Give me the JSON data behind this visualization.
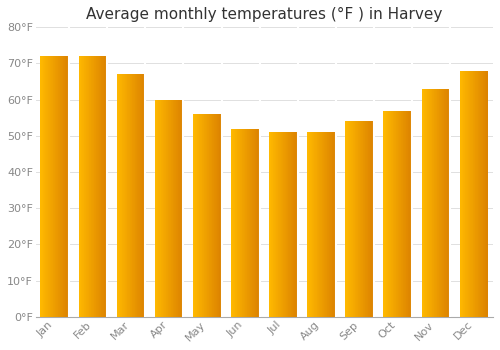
{
  "title": "Average monthly temperatures (°F ) in Harvey",
  "months": [
    "Jan",
    "Feb",
    "Mar",
    "Apr",
    "May",
    "Jun",
    "Jul",
    "Aug",
    "Sep",
    "Oct",
    "Nov",
    "Dec"
  ],
  "values": [
    72,
    72,
    67,
    60,
    56,
    52,
    51,
    51,
    54,
    57,
    63,
    68
  ],
  "bar_color_left": "#FFB800",
  "bar_color_right": "#F08000",
  "bar_color_top": "#F5A623",
  "ylim": [
    0,
    80
  ],
  "yticks": [
    0,
    10,
    20,
    30,
    40,
    50,
    60,
    70,
    80
  ],
  "ytick_labels": [
    "0°F",
    "10°F",
    "20°F",
    "30°F",
    "40°F",
    "50°F",
    "60°F",
    "70°F",
    "80°F"
  ],
  "background_color": "#FFFFFF",
  "plot_bg_color": "#FFFFFF",
  "grid_color": "#E0E0E0",
  "title_fontsize": 11,
  "tick_fontsize": 8,
  "tick_color": "#888888",
  "bar_width": 0.75
}
